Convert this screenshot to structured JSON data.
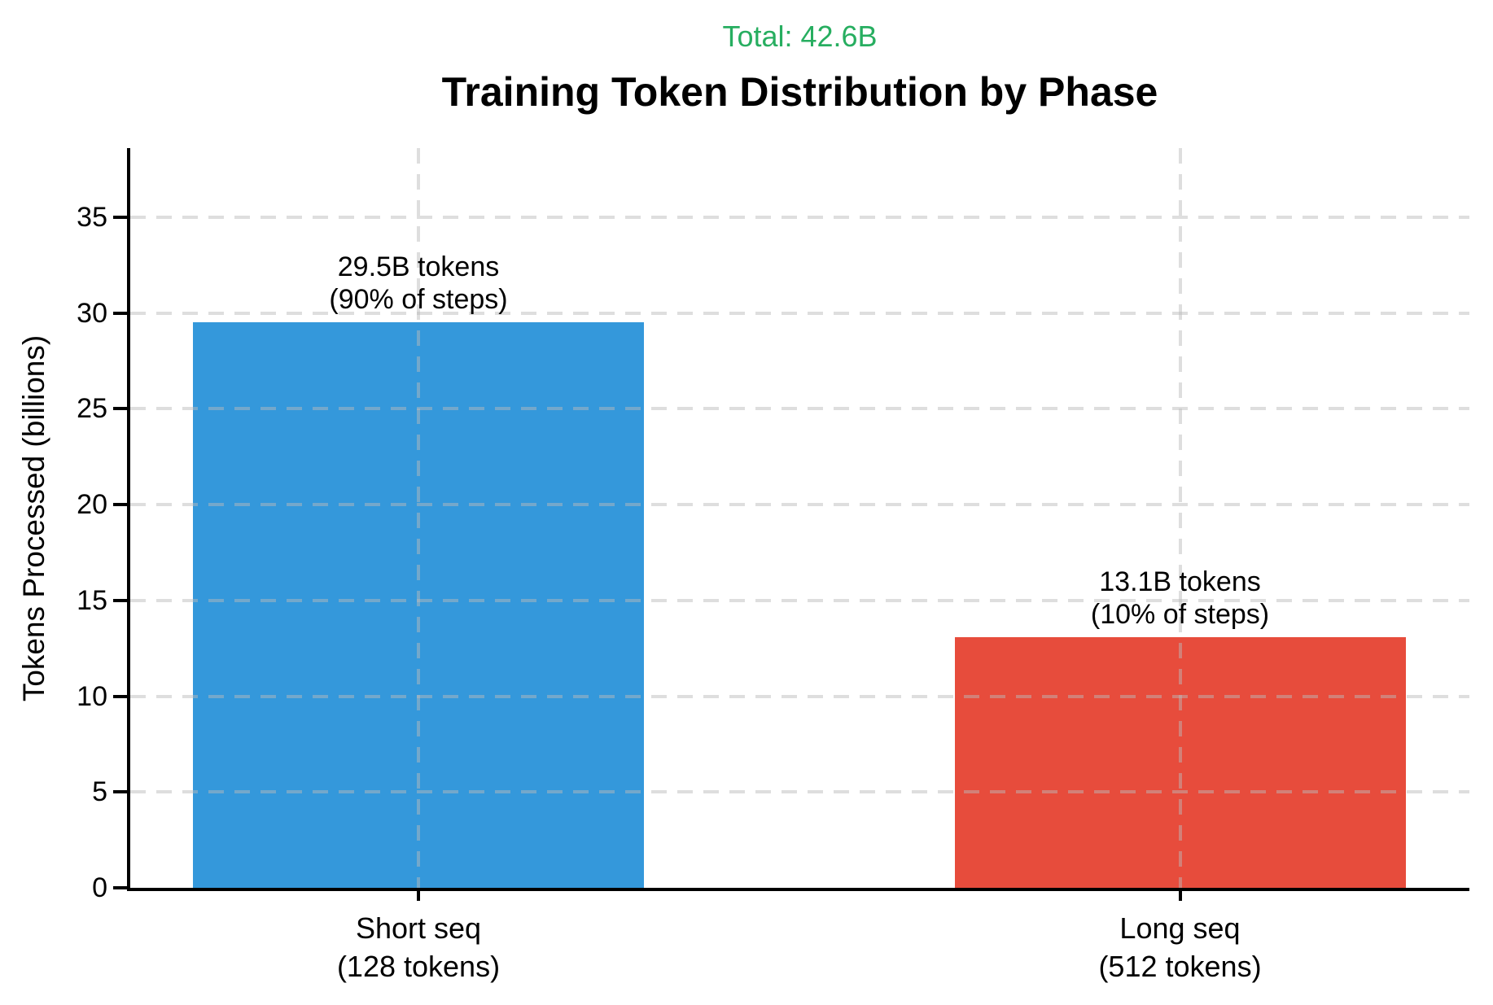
{
  "chart_data": {
    "type": "bar",
    "title": "Training Token Distribution by Phase",
    "total_annotation": "Total: 42.6B",
    "total_color": "#27ae60",
    "ylabel": "Tokens Processed (billions)",
    "xlabel": "",
    "categories": [
      [
        "Short seq",
        "(128 tokens)"
      ],
      [
        "Long seq",
        "(512 tokens)"
      ]
    ],
    "values": [
      29.5,
      13.1
    ],
    "bar_labels": [
      [
        "29.5B tokens",
        "(90% of steps)"
      ],
      [
        "13.1B tokens",
        "(10% of steps)"
      ]
    ],
    "bar_colors": [
      "#3498db",
      "#e74c3c"
    ],
    "yticks": [
      0,
      5,
      10,
      15,
      20,
      25,
      30,
      35
    ],
    "ylim": [
      0,
      38.6
    ],
    "grid": {
      "style": "dashed",
      "horizontal": true,
      "vertical": true,
      "drawn_over_bars": true
    },
    "legend": "none"
  }
}
